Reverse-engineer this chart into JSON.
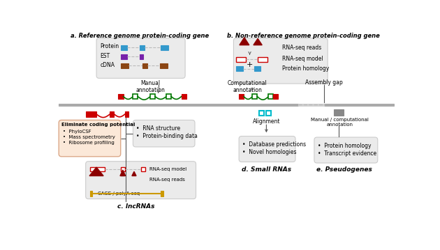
{
  "fig_width": 6.3,
  "fig_height": 3.59,
  "bg_color": "#ffffff",
  "title_a": "a. Reference genome protein-coding gene",
  "title_b": "b. Non-reference genome protein-coding gene",
  "title_c": "c. lncRNAs",
  "title_d": "d. Small RNAs",
  "title_e": "e. Pseudogenes",
  "red": "#cc0000",
  "dark_red": "#8b0000",
  "green": "#007700",
  "blue": "#3399cc",
  "purple": "#7722aa",
  "brown": "#8B4513",
  "cyan": "#00bbcc",
  "gold": "#cc9900",
  "gray_box": "#ebebeb",
  "salmon_box": "#fbe8d8",
  "dark_gray": "#555555",
  "mid_gray": "#888888",
  "light_gray": "#bbbbbb",
  "genome_gray": "#aaaaaa",
  "gap_gray": "#d0d0d0"
}
